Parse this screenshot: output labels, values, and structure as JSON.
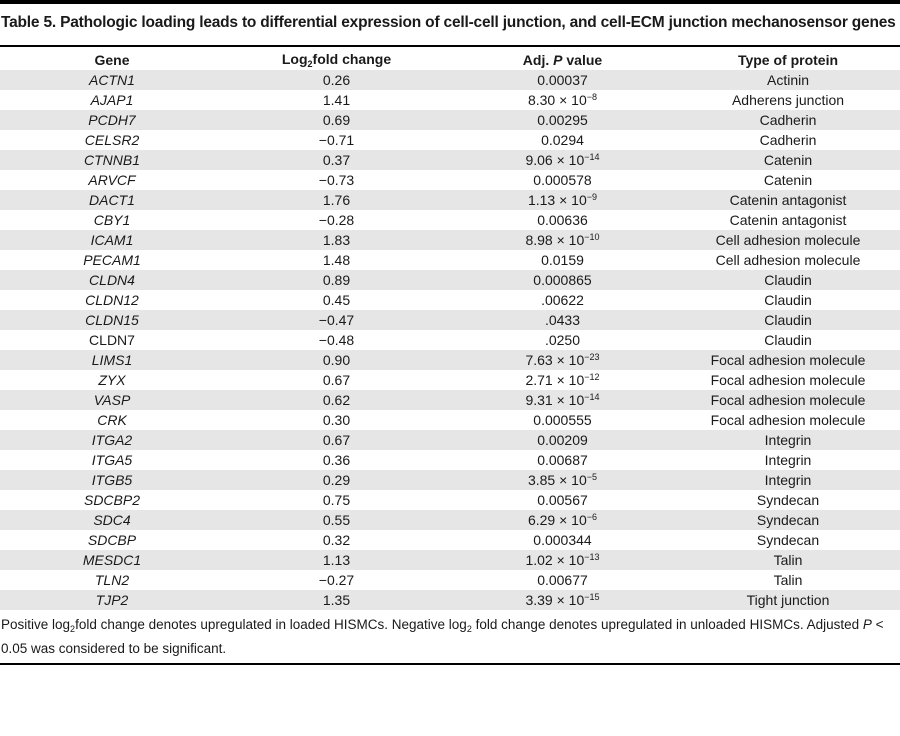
{
  "title": "Table 5. Pathologic loading leads to differential expression of cell-cell junction, and cell-ECM junction mechanosensor genes",
  "headers": {
    "gene": "Gene",
    "log_prefix": "Log",
    "log_sub": "2",
    "log_suffix": "fold change",
    "adjp_prefix": "Adj. ",
    "adjp_italic": "P",
    "adjp_suffix": " value",
    "type": "Type of protein"
  },
  "rows": [
    {
      "gene": "ACTN1",
      "log2fc": "0.26",
      "p": "0.00037",
      "type": "Actinin"
    },
    {
      "gene": "AJAP1",
      "log2fc": "1.41",
      "p": "8.30 × 10",
      "exp": "−8",
      "type": "Adherens junction"
    },
    {
      "gene": "PCDH7",
      "log2fc": "0.69",
      "p": "0.00295",
      "type": "Cadherin"
    },
    {
      "gene": "CELSR2",
      "log2fc": "−0.71",
      "p": "0.0294",
      "type": "Cadherin"
    },
    {
      "gene": "CTNNB1",
      "log2fc": "0.37",
      "p": "9.06 × 10",
      "exp": "−14",
      "type": "Catenin"
    },
    {
      "gene": "ARVCF",
      "log2fc": "−0.73",
      "p": "0.000578",
      "type": "Catenin"
    },
    {
      "gene": "DACT1",
      "log2fc": "1.76",
      "p": "1.13 × 10",
      "exp": "−9",
      "type": "Catenin antagonist"
    },
    {
      "gene": "CBY1",
      "log2fc": "−0.28",
      "p": "0.00636",
      "type": "Catenin antagonist"
    },
    {
      "gene": "ICAM1",
      "log2fc": "1.83",
      "p": "8.98 × 10",
      "exp": "−10",
      "type": "Cell adhesion molecule"
    },
    {
      "gene": "PECAM1",
      "log2fc": "1.48",
      "p": "0.0159",
      "type": "Cell adhesion molecule"
    },
    {
      "gene": "CLDN4",
      "log2fc": "0.89",
      "p": "0.000865",
      "type": "Claudin"
    },
    {
      "gene": "CLDN12",
      "log2fc": "0.45",
      "p": ".00622",
      "type": "Claudin"
    },
    {
      "gene": "CLDN15",
      "log2fc": "−0.47",
      "p": ".0433",
      "type": "Claudin"
    },
    {
      "gene": "CLDN7",
      "log2fc": "−0.48",
      "p": ".0250",
      "type": "Claudin",
      "roman": true
    },
    {
      "gene": "LIMS1",
      "log2fc": "0.90",
      "p": "7.63 × 10",
      "exp": "−23",
      "type": "Focal adhesion molecule"
    },
    {
      "gene": "ZYX",
      "log2fc": "0.67",
      "p": "2.71 × 10",
      "exp": "−12",
      "type": "Focal adhesion molecule"
    },
    {
      "gene": "VASP",
      "log2fc": "0.62",
      "p": "9.31 × 10",
      "exp": "−14",
      "type": "Focal adhesion molecule"
    },
    {
      "gene": "CRK",
      "log2fc": "0.30",
      "p": "0.000555",
      "type": "Focal adhesion molecule"
    },
    {
      "gene": "ITGA2",
      "log2fc": "0.67",
      "p": "0.00209",
      "type": "Integrin"
    },
    {
      "gene": "ITGA5",
      "log2fc": "0.36",
      "p": "0.00687",
      "type": "Integrin"
    },
    {
      "gene": "ITGB5",
      "log2fc": "0.29",
      "p": "3.85 × 10",
      "exp": "−5",
      "type": "Integrin"
    },
    {
      "gene": "SDCBP2",
      "log2fc": "0.75",
      "p": "0.00567",
      "type": "Syndecan"
    },
    {
      "gene": "SDC4",
      "log2fc": "0.55",
      "p": "6.29 × 10",
      "exp": "−6",
      "type": "Syndecan"
    },
    {
      "gene": "SDCBP",
      "log2fc": "0.32",
      "p": "0.000344",
      "type": "Syndecan"
    },
    {
      "gene": "MESDC1",
      "log2fc": "1.13",
      "p": "1.02 × 10",
      "exp": "−13",
      "type": "Talin"
    },
    {
      "gene": "TLN2",
      "log2fc": "−0.27",
      "p": "0.00677",
      "type": "Talin"
    },
    {
      "gene": "TJP2",
      "log2fc": "1.35",
      "p": "3.39 × 10",
      "exp": "−15",
      "type": "Tight junction"
    }
  ],
  "footnote": {
    "part1": "Positive log",
    "sub1": "2",
    "part2": "fold change denotes upregulated in loaded HISMCs. Negative log",
    "sub2": "2",
    "part3": " fold change denotes upregulated in unloaded HISMCs. Adjusted ",
    "p_italic": "P",
    "part4": " < 0.05 was considered to be significant."
  }
}
